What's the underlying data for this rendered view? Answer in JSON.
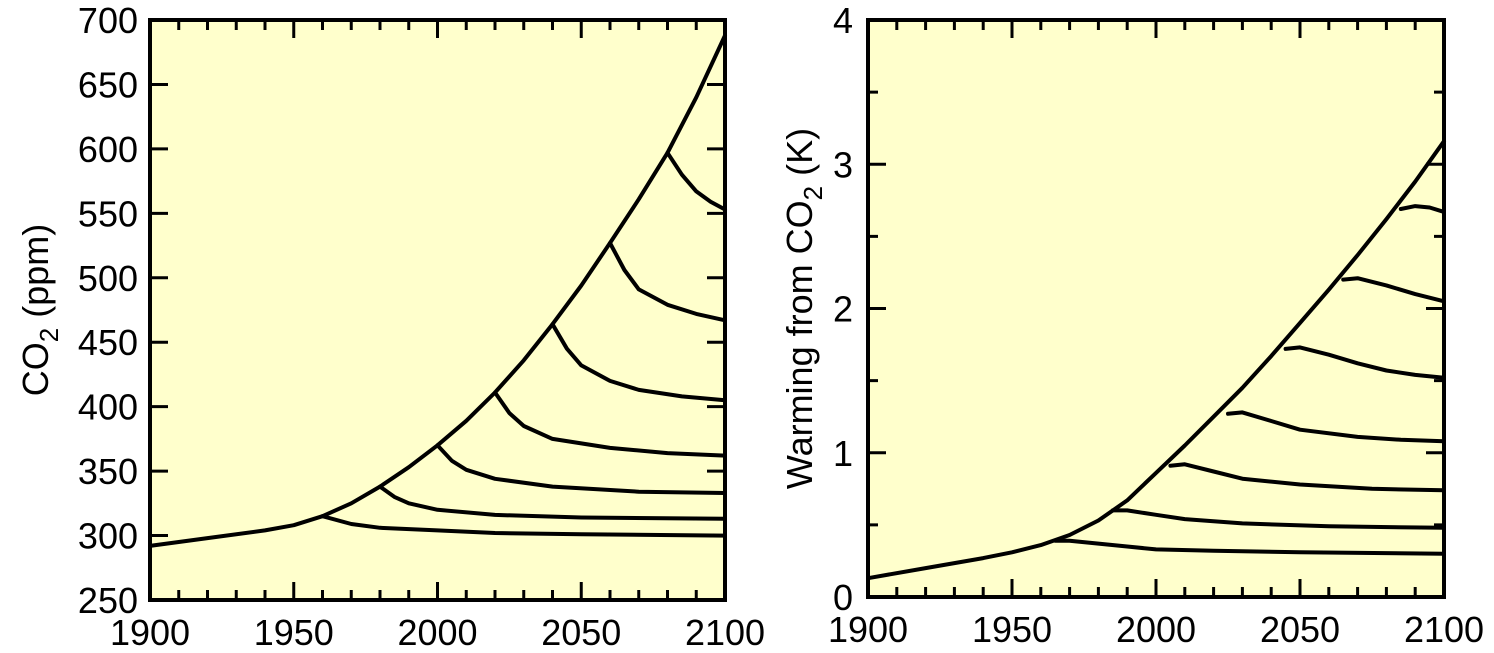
{
  "chart_data": [
    {
      "type": "line",
      "ylabel_main": "CO",
      "ylabel_sub": "2",
      "ylabel_tail": " (ppm)",
      "xlim": [
        1900,
        2100
      ],
      "ylim": [
        250,
        700
      ],
      "xticks": [
        1900,
        1950,
        2000,
        2050,
        2100
      ],
      "xtick_labels": [
        "1900",
        "1950",
        "2000",
        "2050",
        "2100"
      ],
      "yticks": [
        250,
        300,
        350,
        400,
        450,
        500,
        550,
        600,
        650,
        700
      ],
      "ytick_labels": [
        "250",
        "300",
        "350",
        "400",
        "450",
        "500",
        "550",
        "600",
        "650",
        "700"
      ],
      "minor_x_step": 10,
      "grid": false,
      "background": "#ffffcc",
      "line_color": "#000000",
      "series": [
        {
          "x": [
            1900,
            1920,
            1940,
            1950,
            1960,
            1970,
            1980,
            1990,
            2000,
            2010,
            2020,
            2030,
            2040,
            2050,
            2060,
            2070,
            2080,
            2090,
            2100
          ],
          "values": [
            292,
            298,
            304,
            308,
            315,
            325,
            338,
            353,
            370,
            389,
            411,
            436,
            464,
            494,
            527,
            561,
            597,
            640,
            688
          ]
        },
        {
          "x": [
            1960,
            1970,
            1980,
            2000,
            2020,
            2050,
            2100
          ],
          "values": [
            315,
            309,
            306,
            304,
            302,
            301,
            300
          ]
        },
        {
          "x": [
            1980,
            1985,
            1990,
            2000,
            2020,
            2050,
            2100
          ],
          "values": [
            338,
            330,
            325,
            320,
            316,
            314,
            313
          ]
        },
        {
          "x": [
            2000,
            2005,
            2010,
            2020,
            2040,
            2070,
            2100
          ],
          "values": [
            370,
            358,
            351,
            344,
            338,
            334,
            333
          ]
        },
        {
          "x": [
            2020,
            2025,
            2030,
            2040,
            2060,
            2080,
            2100
          ],
          "values": [
            411,
            395,
            385,
            375,
            368,
            364,
            362
          ]
        },
        {
          "x": [
            2040,
            2045,
            2050,
            2060,
            2070,
            2085,
            2100
          ],
          "values": [
            464,
            445,
            432,
            420,
            413,
            408,
            405
          ]
        },
        {
          "x": [
            2060,
            2065,
            2070,
            2080,
            2090,
            2100
          ],
          "values": [
            527,
            506,
            491,
            479,
            472,
            467
          ]
        },
        {
          "x": [
            2080,
            2085,
            2090,
            2095,
            2100
          ],
          "values": [
            597,
            580,
            567,
            559,
            553
          ]
        }
      ]
    },
    {
      "type": "line",
      "ylabel_main": "Warming from CO",
      "ylabel_sub": "2",
      "ylabel_tail": " (K)",
      "xlim": [
        1900,
        2100
      ],
      "ylim": [
        0,
        4
      ],
      "xticks": [
        1900,
        1950,
        2000,
        2050,
        2100
      ],
      "xtick_labels": [
        "1900",
        "1950",
        "2000",
        "2050",
        "2100"
      ],
      "yticks": [
        0,
        1,
        2,
        3,
        4
      ],
      "ytick_labels": [
        "0",
        "1",
        "2",
        "3",
        "4"
      ],
      "minor_x_step": 10,
      "minor_y_step": 0.5,
      "grid": false,
      "background": "#ffffcc",
      "line_color": "#000000",
      "series": [
        {
          "x": [
            1900,
            1920,
            1940,
            1950,
            1960,
            1970,
            1980,
            1990,
            2000,
            2010,
            2020,
            2030,
            2040,
            2050,
            2060,
            2070,
            2080,
            2090,
            2100
          ],
          "values": [
            0.13,
            0.2,
            0.27,
            0.31,
            0.36,
            0.43,
            0.53,
            0.67,
            0.86,
            1.05,
            1.25,
            1.45,
            1.67,
            1.9,
            2.13,
            2.37,
            2.62,
            2.88,
            3.16
          ]
        },
        {
          "x": [
            1965,
            1970,
            1980,
            1990,
            2000,
            2020,
            2050,
            2100
          ],
          "values": [
            0.39,
            0.39,
            0.37,
            0.35,
            0.33,
            0.32,
            0.31,
            0.3
          ]
        },
        {
          "x": [
            1985,
            1990,
            2000,
            2010,
            2030,
            2060,
            2100
          ],
          "values": [
            0.6,
            0.6,
            0.57,
            0.54,
            0.51,
            0.49,
            0.48
          ]
        },
        {
          "x": [
            2005,
            2010,
            2020,
            2030,
            2050,
            2075,
            2100
          ],
          "values": [
            0.91,
            0.92,
            0.87,
            0.82,
            0.78,
            0.75,
            0.74
          ]
        },
        {
          "x": [
            2025,
            2030,
            2040,
            2050,
            2070,
            2085,
            2100
          ],
          "values": [
            1.27,
            1.28,
            1.22,
            1.16,
            1.11,
            1.09,
            1.08
          ]
        },
        {
          "x": [
            2045,
            2050,
            2060,
            2070,
            2080,
            2090,
            2100
          ],
          "values": [
            1.72,
            1.73,
            1.68,
            1.62,
            1.57,
            1.54,
            1.52
          ]
        },
        {
          "x": [
            2065,
            2070,
            2080,
            2090,
            2100
          ],
          "values": [
            2.2,
            2.21,
            2.16,
            2.1,
            2.05
          ]
        },
        {
          "x": [
            2085,
            2090,
            2095,
            2100
          ],
          "values": [
            2.69,
            2.71,
            2.7,
            2.67
          ]
        }
      ]
    }
  ]
}
